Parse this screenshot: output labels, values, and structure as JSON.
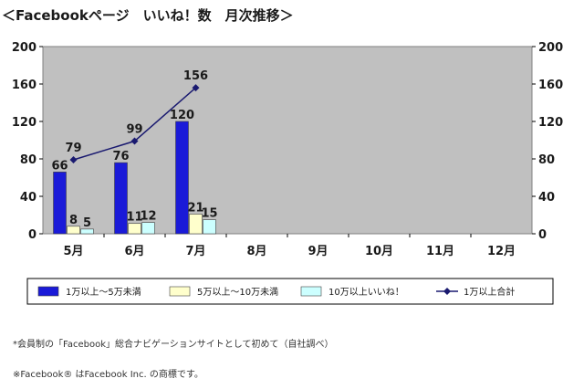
{
  "colors": {
    "plot_bg": "#c0c0c0",
    "series1": "#1a1ad8",
    "series2": "#ffffcc",
    "series3": "#ccffff",
    "total_line": "#1a1a70",
    "text": "#1a1a1a",
    "legend_border": "#000000"
  },
  "chart_data": {
    "type": "bar",
    "title": "＜Facebookページ　いいね！数　月次推移＞",
    "categories": [
      "5月",
      "6月",
      "7月",
      "8月",
      "9月",
      "10月",
      "11月",
      "12月"
    ],
    "ylim": [
      0,
      200
    ],
    "yticks": [
      0,
      40,
      80,
      120,
      160,
      200
    ],
    "grid": false,
    "legend_position": "bottom",
    "series": [
      {
        "name": "1万以上～5万未満",
        "kind": "bar",
        "values": [
          66,
          76,
          120,
          null,
          null,
          null,
          null,
          null
        ]
      },
      {
        "name": "5万以上～10万未満",
        "kind": "bar",
        "values": [
          8,
          11,
          21,
          null,
          null,
          null,
          null,
          null
        ]
      },
      {
        "name": "10万以上いいね！",
        "kind": "bar",
        "values": [
          5,
          12,
          15,
          null,
          null,
          null,
          null,
          null
        ]
      },
      {
        "name": "1万以上合計",
        "kind": "line",
        "marker": "diamond",
        "values": [
          79,
          99,
          156,
          null,
          null,
          null,
          null,
          null
        ]
      }
    ]
  },
  "notes": {
    "note1": "*会員制の「Facebook」総合ナビゲーションサイトとして初めて（自社調べ）",
    "note2": "※Facebook® はFacebook Inc. の商標です。"
  }
}
